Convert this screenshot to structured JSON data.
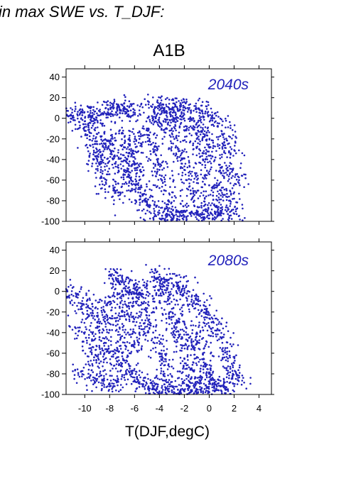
{
  "heading": "in max SWE vs. T_DJF:",
  "scenario": "A1B",
  "point_color": "#2222bb",
  "chart_data": [
    {
      "type": "scatter",
      "panel_label": "2040s",
      "xlabel": "",
      "ylabel": "",
      "xlim": [
        -11.5,
        5
      ],
      "ylim": [
        -100,
        48
      ],
      "y_ticks": [
        40,
        20,
        0,
        -20,
        -40,
        -60,
        -80,
        -100
      ],
      "x_ticks": [
        -10,
        -8,
        -6,
        -4,
        -2,
        0,
        2,
        4
      ],
      "show_x_tick_labels": false,
      "points": [
        [
          -11.3,
          2
        ],
        [
          -10.6,
          4
        ],
        [
          -10.2,
          3
        ],
        [
          -9.7,
          1
        ],
        [
          -9.5,
          -2
        ],
        [
          -9.2,
          -1
        ],
        [
          -8.6,
          5
        ],
        [
          -8.3,
          10
        ],
        [
          -7.8,
          11
        ],
        [
          -7.4,
          9
        ],
        [
          -7.1,
          8
        ],
        [
          -6.8,
          10
        ],
        [
          -6.5,
          7
        ],
        [
          -6.1,
          9
        ],
        [
          -10.1,
          -10
        ],
        [
          -9.6,
          -14
        ],
        [
          -9.2,
          -25
        ],
        [
          -8.7,
          -18
        ],
        [
          -8.4,
          -30
        ],
        [
          -8.1,
          -22
        ],
        [
          -7.6,
          -36
        ],
        [
          -7.3,
          -48
        ],
        [
          -6.9,
          -55
        ],
        [
          -6.6,
          -40
        ],
        [
          -6.3,
          -58
        ],
        [
          -6,
          -45
        ],
        [
          -8.7,
          -50
        ],
        [
          -8.3,
          -62
        ],
        [
          -7.7,
          -70
        ],
        [
          -7.3,
          -72
        ],
        [
          -9.3,
          -35
        ],
        [
          -9,
          -40
        ],
        [
          -8.8,
          -45
        ],
        [
          -6.2,
          -70
        ],
        [
          -5.8,
          -64
        ],
        [
          -5.5,
          -52
        ],
        [
          -5.3,
          -74
        ],
        [
          -5.1,
          -80
        ],
        [
          -4.8,
          -86
        ],
        [
          -4.4,
          -90
        ],
        [
          -4,
          -92
        ],
        [
          -3.5,
          -94
        ],
        [
          -3,
          -93
        ],
        [
          -2.5,
          -91
        ],
        [
          -2,
          -95
        ],
        [
          -1.5,
          -93
        ],
        [
          -1,
          -92
        ],
        [
          -0.5,
          -96
        ],
        [
          0,
          -94
        ],
        [
          0.5,
          -93
        ],
        [
          1,
          -92
        ],
        [
          1.5,
          -93
        ],
        [
          2.2,
          -93
        ],
        [
          -4.6,
          11
        ],
        [
          -4.1,
          12
        ],
        [
          -3.6,
          10
        ],
        [
          -3.1,
          9
        ],
        [
          -2.6,
          11
        ],
        [
          -2.1,
          8
        ],
        [
          -1.6,
          10
        ],
        [
          -1.1,
          9
        ],
        [
          -0.6,
          7
        ],
        [
          -0.1,
          3
        ],
        [
          0.4,
          0
        ],
        [
          0.8,
          -5
        ],
        [
          1.2,
          -15
        ],
        [
          1.5,
          -25
        ],
        [
          1.6,
          -32
        ],
        [
          2.4,
          -60
        ],
        [
          1.9,
          -50
        ],
        [
          -5,
          -10
        ],
        [
          -4.8,
          -20
        ],
        [
          -4.5,
          -30
        ],
        [
          -4.2,
          -40
        ],
        [
          -4,
          -50
        ],
        [
          -3.8,
          -60
        ],
        [
          -3.6,
          -70
        ],
        [
          -3.3,
          -80
        ],
        [
          -3,
          -10
        ],
        [
          -2.8,
          -20
        ],
        [
          -2.5,
          -30
        ],
        [
          -2.2,
          -40
        ],
        [
          -2,
          -50
        ],
        [
          -1.8,
          -60
        ],
        [
          -1.5,
          -70
        ],
        [
          -1.2,
          -80
        ],
        [
          -1,
          -20
        ],
        [
          -0.8,
          -30
        ],
        [
          -0.5,
          -40
        ],
        [
          -0.3,
          -55
        ],
        [
          0,
          -65
        ],
        [
          0.3,
          -75
        ],
        [
          0.6,
          -85
        ],
        [
          -5.6,
          -20
        ],
        [
          -5.9,
          -28
        ],
        [
          -6.4,
          -34
        ],
        [
          -6.8,
          -24
        ],
        [
          -7,
          -14
        ],
        [
          -4.3,
          0
        ],
        [
          -3.9,
          -5
        ],
        [
          -3.4,
          5
        ],
        [
          -2.9,
          -3
        ],
        [
          -2.3,
          2
        ],
        [
          -1.8,
          -8
        ],
        [
          -1.3,
          0
        ],
        [
          -0.9,
          -12
        ],
        [
          -0.4,
          -18
        ],
        [
          0.1,
          -28
        ],
        [
          0.5,
          -38
        ],
        [
          0.9,
          -48
        ],
        [
          1.2,
          -58
        ],
        [
          1.4,
          -70
        ],
        [
          1.6,
          -80
        ],
        [
          -2.6,
          -99
        ]
      ]
    },
    {
      "type": "scatter",
      "panel_label": "2080s",
      "xlabel": "T(DJF,degC)",
      "ylabel": "",
      "xlim": [
        -11.5,
        5
      ],
      "ylim": [
        -100,
        48
      ],
      "y_ticks": [
        40,
        20,
        0,
        -20,
        -40,
        -60,
        -80,
        -100
      ],
      "x_ticks": [
        -10,
        -8,
        -6,
        -4,
        -2,
        0,
        2,
        4
      ],
      "show_x_tick_labels": true,
      "points": [
        [
          -11.4,
          0
        ],
        [
          -10.7,
          -5
        ],
        [
          -10.3,
          -15
        ],
        [
          -9.8,
          -22
        ],
        [
          -9.4,
          -12
        ],
        [
          -9,
          -30
        ],
        [
          -8.6,
          -40
        ],
        [
          -8.2,
          -28
        ],
        [
          -7.9,
          15
        ],
        [
          -7.5,
          13
        ],
        [
          -7.1,
          10
        ],
        [
          -6.7,
          5
        ],
        [
          -6.4,
          0
        ],
        [
          -6,
          3
        ],
        [
          -5.7,
          -2
        ],
        [
          -10.4,
          -35
        ],
        [
          -9.9,
          -45
        ],
        [
          -9.5,
          -55
        ],
        [
          -9.1,
          -62
        ],
        [
          -8.7,
          -68
        ],
        [
          -8.3,
          -50
        ],
        [
          -7.8,
          -58
        ],
        [
          -7.4,
          -64
        ],
        [
          -7,
          -70
        ],
        [
          -6.6,
          -76
        ],
        [
          -6.2,
          -80
        ],
        [
          -10.3,
          -78
        ],
        [
          -9.7,
          -80
        ],
        [
          -9.2,
          -84
        ],
        [
          -8.5,
          -87
        ],
        [
          -8,
          -90
        ],
        [
          -7.6,
          -92
        ],
        [
          -5.8,
          -85
        ],
        [
          -5.3,
          -90
        ],
        [
          -4.9,
          -93
        ],
        [
          -4.5,
          -95
        ],
        [
          -4,
          -97
        ],
        [
          -3.5,
          -98
        ],
        [
          -3,
          -96
        ],
        [
          -2.5,
          -99
        ],
        [
          -2,
          -97
        ],
        [
          -1.5,
          -98
        ],
        [
          -1,
          -99
        ],
        [
          -0.5,
          -97
        ],
        [
          0,
          -98
        ],
        [
          0.5,
          -96
        ],
        [
          1,
          -97
        ],
        [
          1.5,
          -95
        ],
        [
          2.3,
          -86
        ],
        [
          1.9,
          -80
        ],
        [
          -4.6,
          14
        ],
        [
          -4.2,
          13
        ],
        [
          -3.8,
          12
        ],
        [
          -3.4,
          10
        ],
        [
          -3,
          8
        ],
        [
          -2.6,
          5
        ],
        [
          -2.2,
          2
        ],
        [
          -1.8,
          -2
        ],
        [
          -1.4,
          -8
        ],
        [
          -1,
          -12
        ],
        [
          -0.6,
          -18
        ],
        [
          -0.2,
          -22
        ],
        [
          0.2,
          -30
        ],
        [
          0.6,
          -38
        ],
        [
          1,
          -45
        ],
        [
          1.3,
          -55
        ],
        [
          1.5,
          -65
        ],
        [
          1.7,
          -75
        ],
        [
          -5,
          -20
        ],
        [
          -4.8,
          -30
        ],
        [
          -4.5,
          -40
        ],
        [
          -4.2,
          -50
        ],
        [
          -4,
          -60
        ],
        [
          -3.8,
          -70
        ],
        [
          -3.6,
          -80
        ],
        [
          -3.3,
          -88
        ],
        [
          -3,
          -25
        ],
        [
          -2.8,
          -35
        ],
        [
          -2.5,
          -45
        ],
        [
          -2.2,
          -55
        ],
        [
          -2,
          -65
        ],
        [
          -1.8,
          -75
        ],
        [
          -1.5,
          -85
        ],
        [
          -1.2,
          -90
        ],
        [
          -1,
          -40
        ],
        [
          -0.8,
          -50
        ],
        [
          -0.5,
          -60
        ],
        [
          -0.3,
          -70
        ],
        [
          0,
          -80
        ],
        [
          0.3,
          -85
        ],
        [
          -5.6,
          -40
        ],
        [
          -6,
          -50
        ],
        [
          -6.4,
          -60
        ],
        [
          -6.8,
          -45
        ],
        [
          -7.2,
          -35
        ],
        [
          -5.9,
          -10
        ],
        [
          -5.4,
          -5
        ],
        [
          -6.2,
          -25
        ],
        [
          -6.6,
          -15
        ],
        [
          -7,
          -20
        ],
        [
          -7.6,
          -5
        ],
        [
          -8,
          -10
        ],
        [
          -8.4,
          -20
        ],
        [
          -4.4,
          -10
        ],
        [
          -3.9,
          -2
        ],
        [
          -3.2,
          -12
        ],
        [
          -2.4,
          -30
        ],
        [
          -1.6,
          -45
        ],
        [
          -0.7,
          -75
        ],
        [
          0.4,
          -92
        ]
      ]
    }
  ]
}
